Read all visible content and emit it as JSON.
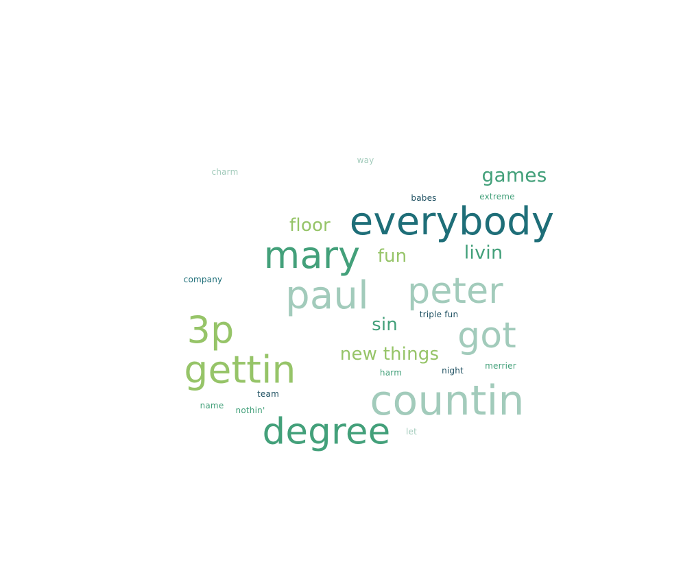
{
  "palette": {
    "dark_teal": "#1e6e78",
    "green": "#43a07a",
    "light_green": "#96c468",
    "pale": "#a2cbbb",
    "navy": "#1d4f60"
  },
  "words": [
    {
      "text": "everybody",
      "color": "#1e6e78"
    },
    {
      "text": "mary",
      "color": "#43a07a"
    },
    {
      "text": "paul",
      "color": "#a2cbbb"
    },
    {
      "text": "peter",
      "color": "#a2cbbb"
    },
    {
      "text": "3p",
      "color": "#96c468"
    },
    {
      "text": "gettin",
      "color": "#96c468"
    },
    {
      "text": "got",
      "color": "#a2cbbb"
    },
    {
      "text": "countin",
      "color": "#a2cbbb"
    },
    {
      "text": "degree",
      "color": "#43a07a"
    },
    {
      "text": "games",
      "color": "#43a07a"
    },
    {
      "text": "floor",
      "color": "#96c468"
    },
    {
      "text": "fun",
      "color": "#96c468"
    },
    {
      "text": "livin",
      "color": "#43a07a"
    },
    {
      "text": "sin",
      "color": "#43a07a"
    },
    {
      "text": "new things",
      "color": "#96c468"
    },
    {
      "text": "charm",
      "color": "#a2cbbb"
    },
    {
      "text": "way",
      "color": "#a2cbbb"
    },
    {
      "text": "babes",
      "color": "#1d4f60"
    },
    {
      "text": "extreme",
      "color": "#43a07a"
    },
    {
      "text": "company",
      "color": "#1e6e78"
    },
    {
      "text": "triple fun",
      "color": "#1d4f60"
    },
    {
      "text": "harm",
      "color": "#43a07a"
    },
    {
      "text": "night",
      "color": "#1d4f60"
    },
    {
      "text": "merrier",
      "color": "#43a07a"
    },
    {
      "text": "team",
      "color": "#1d4f60"
    },
    {
      "text": "name",
      "color": "#43a07a"
    },
    {
      "text": "nothin'",
      "color": "#43a07a"
    },
    {
      "text": "let",
      "color": "#a2cbbb"
    }
  ]
}
